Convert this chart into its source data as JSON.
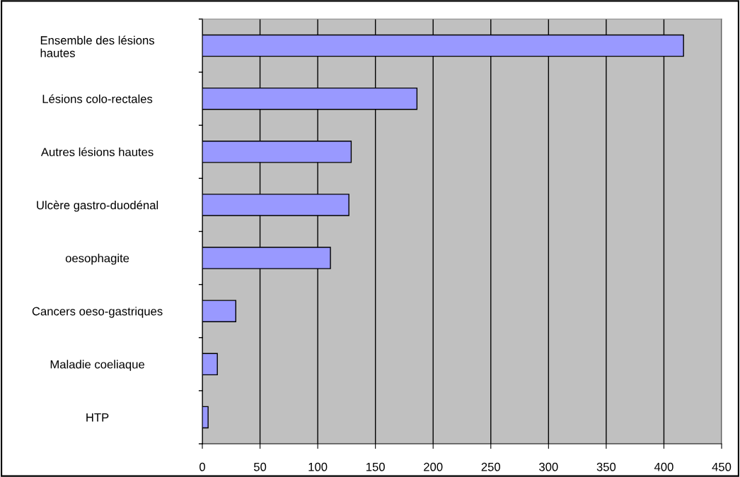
{
  "chart_data": {
    "type": "bar",
    "orientation": "horizontal",
    "categories": [
      "Ensemble des lésions\nhautes",
      "Lésions colo-rectales",
      "Autres lésions hautes",
      "Ulcère gastro-duodénal",
      "oesophagite",
      "Cancers oeso-gastriques",
      "Maladie coeliaque",
      "HTP"
    ],
    "values": [
      417,
      186,
      129,
      127,
      111,
      29,
      13,
      5
    ],
    "color": "#9999ff",
    "xlim": [
      0,
      450
    ],
    "xticks": [
      0,
      50,
      100,
      150,
      200,
      250,
      300,
      350,
      400,
      450
    ],
    "grid": "x"
  }
}
